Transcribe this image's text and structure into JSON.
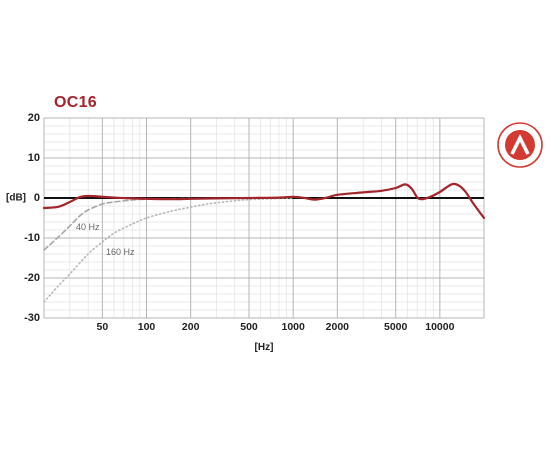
{
  "chart_data": {
    "type": "line",
    "title": "OC16",
    "xlabel": "[Hz]",
    "ylabel": "[dB]",
    "x_scale": "log",
    "xlim": [
      20,
      20000
    ],
    "ylim": [
      -30,
      20
    ],
    "x_ticks": [
      50,
      100,
      200,
      500,
      1000,
      2000,
      5000,
      10000
    ],
    "x_tick_labels": [
      "50",
      "100",
      "200",
      "500",
      "1000",
      "2000",
      "5000",
      "10000"
    ],
    "y_ticks": [
      20,
      10,
      0,
      -10,
      -20,
      -30
    ],
    "y_tick_labels": [
      "20",
      "10",
      "0",
      "-10",
      "-20",
      "-30"
    ],
    "grid": true,
    "annotations": [
      "40 Hz",
      "160 Hz"
    ],
    "series": [
      {
        "color": "#a3242a",
        "style": "solid",
        "points": [
          [
            20,
            -2.5
          ],
          [
            25,
            -2.2
          ],
          [
            30,
            -1
          ],
          [
            35,
            0.2
          ],
          [
            40,
            0.5
          ],
          [
            50,
            0.3
          ],
          [
            60,
            0.1
          ],
          [
            80,
            -0.1
          ],
          [
            100,
            -0.2
          ],
          [
            150,
            -0.3
          ],
          [
            200,
            -0.2
          ],
          [
            300,
            -0.1
          ],
          [
            500,
            0
          ],
          [
            800,
            0.1
          ],
          [
            1000,
            0.3
          ],
          [
            1200,
            0
          ],
          [
            1400,
            -0.4
          ],
          [
            1700,
            0.1
          ],
          [
            2000,
            0.8
          ],
          [
            3000,
            1.4
          ],
          [
            4000,
            1.8
          ],
          [
            5000,
            2.5
          ],
          [
            5800,
            3.4
          ],
          [
            6400,
            2.4
          ],
          [
            7000,
            0.2
          ],
          [
            7500,
            -0.3
          ],
          [
            8500,
            0.2
          ],
          [
            10000,
            1.5
          ],
          [
            12000,
            3.4
          ],
          [
            13500,
            3.1
          ],
          [
            15000,
            1.5
          ],
          [
            17000,
            -1.5
          ],
          [
            20000,
            -5
          ]
        ]
      },
      {
        "name": "40 Hz",
        "color": "#a8a8a8",
        "style": "dashed",
        "points": [
          [
            20,
            -13
          ],
          [
            25,
            -9.8
          ],
          [
            30,
            -7
          ],
          [
            35,
            -4.5
          ],
          [
            40,
            -3
          ],
          [
            50,
            -1.5
          ],
          [
            60,
            -1
          ],
          [
            80,
            -0.5
          ],
          [
            100,
            -0.3
          ],
          [
            150,
            -0.2
          ],
          [
            200,
            -0.1
          ]
        ]
      },
      {
        "name": "160 Hz",
        "color": "#b8b8b8",
        "style": "dotted",
        "points": [
          [
            20,
            -26
          ],
          [
            25,
            -22
          ],
          [
            30,
            -19
          ],
          [
            40,
            -14
          ],
          [
            50,
            -11
          ],
          [
            60,
            -8.8
          ],
          [
            80,
            -6.5
          ],
          [
            100,
            -5
          ],
          [
            130,
            -3.8
          ],
          [
            160,
            -3
          ],
          [
            200,
            -2.3
          ],
          [
            250,
            -1.6
          ],
          [
            300,
            -1.2
          ],
          [
            400,
            -0.7
          ],
          [
            500,
            -0.4
          ],
          [
            700,
            -0.2
          ],
          [
            1000,
            0
          ]
        ]
      }
    ]
  },
  "logo": {
    "name": "brand-logo-icon",
    "color": "#d33a31"
  }
}
